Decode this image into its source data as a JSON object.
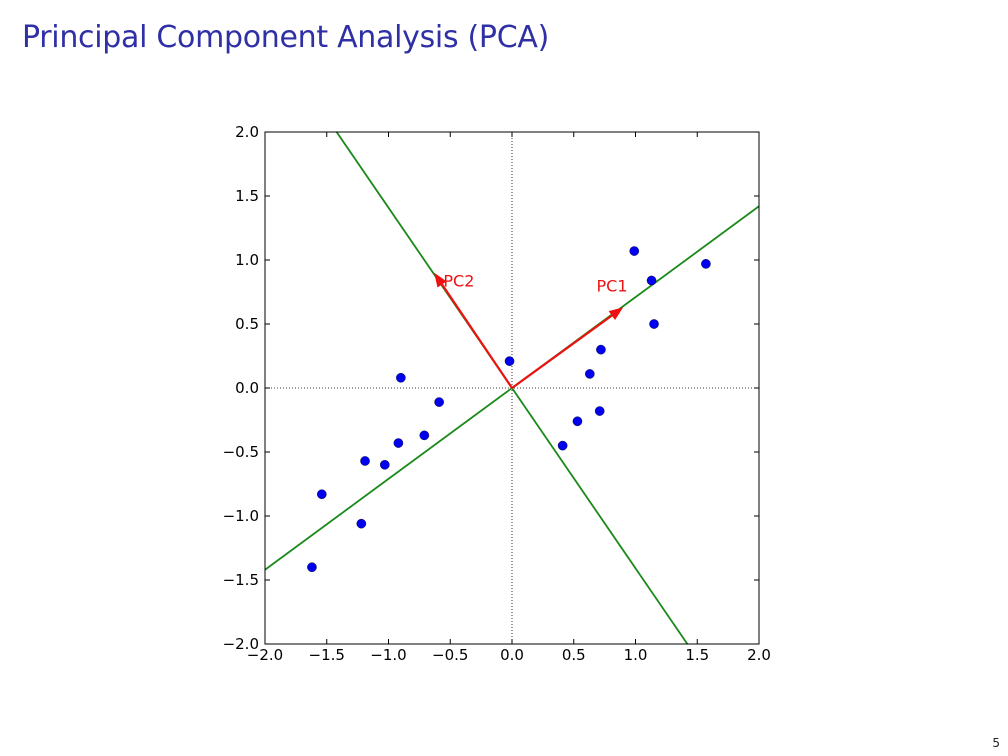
{
  "slide": {
    "title": "Principal Component Analysis (PCA)",
    "page_number": "5"
  },
  "chart_data": {
    "type": "scatter",
    "title": "",
    "xlabel": "",
    "ylabel": "",
    "xlim": [
      -2.0,
      2.0
    ],
    "ylim": [
      -2.0,
      2.0
    ],
    "x_ticks": [
      -2.0,
      -1.5,
      -1.0,
      -0.5,
      0.0,
      0.5,
      1.0,
      1.5,
      2.0
    ],
    "y_ticks": [
      -2.0,
      -1.5,
      -1.0,
      -0.5,
      0.0,
      0.5,
      1.0,
      1.5,
      2.0
    ],
    "x_tick_labels": [
      "−2.0",
      "−1.5",
      "−1.0",
      "−0.5",
      "0.0",
      "0.5",
      "1.0",
      "1.5",
      "2.0"
    ],
    "y_tick_labels": [
      "−2.0",
      "−1.5",
      "−1.0",
      "−0.5",
      "0.0",
      "0.5",
      "1.0",
      "1.5",
      "2.0"
    ],
    "grid": false,
    "zero_lines": true,
    "points": [
      {
        "x": -1.62,
        "y": -1.4
      },
      {
        "x": -1.54,
        "y": -0.83
      },
      {
        "x": -1.22,
        "y": -1.06
      },
      {
        "x": -1.19,
        "y": -0.57
      },
      {
        "x": -1.03,
        "y": -0.6
      },
      {
        "x": -0.92,
        "y": -0.43
      },
      {
        "x": -0.71,
        "y": -0.37
      },
      {
        "x": -0.9,
        "y": 0.08
      },
      {
        "x": -0.59,
        "y": -0.11
      },
      {
        "x": -0.02,
        "y": 0.21
      },
      {
        "x": 0.41,
        "y": -0.45
      },
      {
        "x": 0.53,
        "y": -0.26
      },
      {
        "x": 0.71,
        "y": -0.18
      },
      {
        "x": 0.63,
        "y": 0.11
      },
      {
        "x": 0.72,
        "y": 0.3
      },
      {
        "x": 0.99,
        "y": 1.07
      },
      {
        "x": 1.13,
        "y": 0.84
      },
      {
        "x": 1.15,
        "y": 0.5
      },
      {
        "x": 1.57,
        "y": 0.97
      }
    ],
    "point_color": "#0000ee",
    "component_lines": [
      {
        "from": [
          -2.0,
          -1.42
        ],
        "to": [
          2.0,
          1.42
        ],
        "color": "#1a8a1a"
      },
      {
        "from": [
          -1.42,
          2.0
        ],
        "to": [
          1.42,
          -2.0
        ],
        "color": "#1a8a1a"
      }
    ],
    "vectors": [
      {
        "label": "PC1",
        "from": [
          0,
          0
        ],
        "to": [
          0.9,
          0.63
        ],
        "color": "#ee1111",
        "label_at": [
          0.81,
          0.79
        ]
      },
      {
        "label": "PC2",
        "from": [
          0,
          0
        ],
        "to": [
          -0.63,
          0.9
        ],
        "color": "#ee1111",
        "label_at": [
          -0.43,
          0.83
        ]
      }
    ]
  }
}
